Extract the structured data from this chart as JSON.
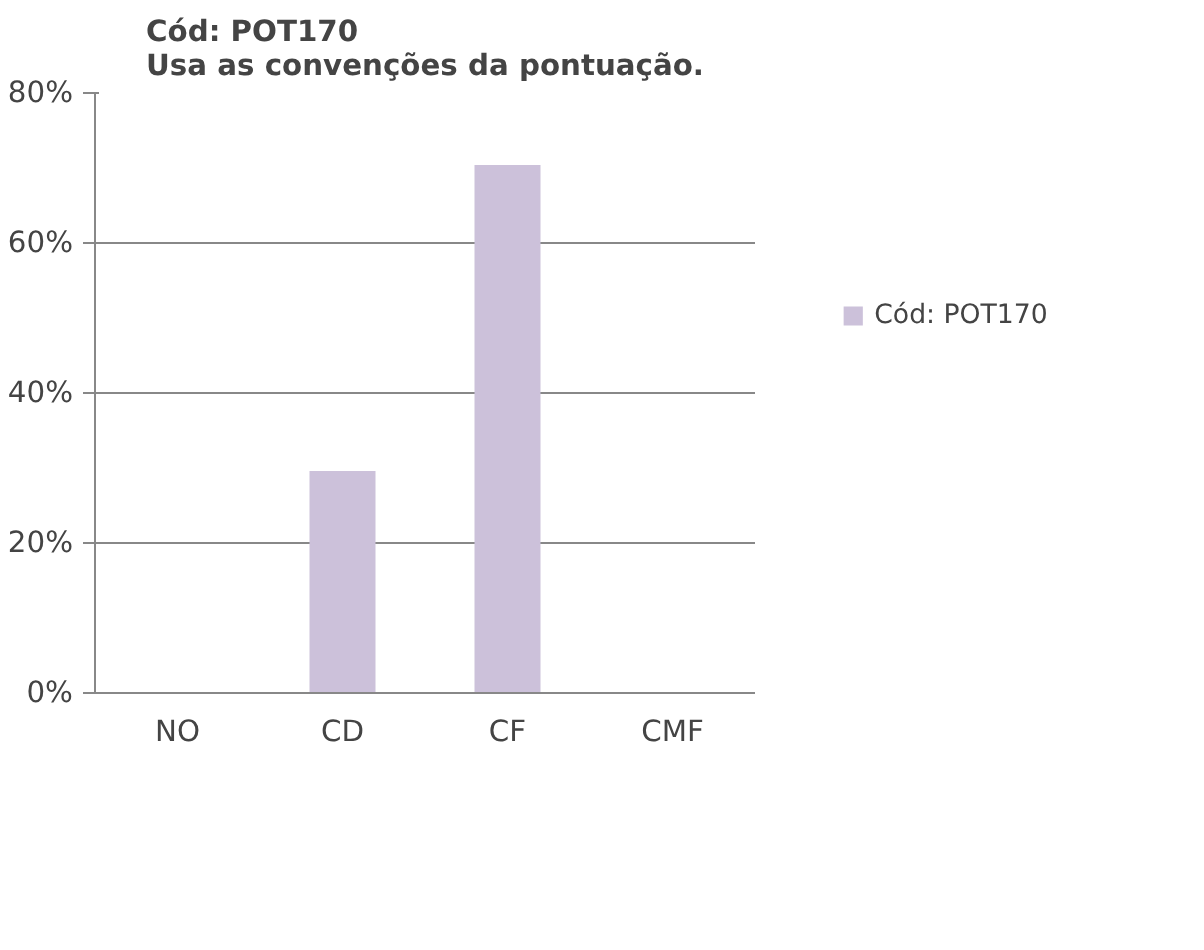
{
  "chart_data": {
    "type": "bar",
    "title": "Cód: POT170\nUsa as convenções da pontuação.",
    "categories": [
      "NO",
      "CD",
      "CF",
      "CMF"
    ],
    "series": [
      {
        "name": "Cód: POT170",
        "color": "#ccc1da",
        "values": [
          0,
          29.6,
          70.4,
          0
        ]
      }
    ],
    "ylim": [
      0,
      80
    ],
    "yticks": [
      {
        "value": 0,
        "label": "0%"
      },
      {
        "value": 20,
        "label": "20%"
      },
      {
        "value": 40,
        "label": "40%"
      },
      {
        "value": 60,
        "label": "60%"
      },
      {
        "value": 80,
        "label": "80%"
      }
    ],
    "grid": "y",
    "legend": "right"
  }
}
